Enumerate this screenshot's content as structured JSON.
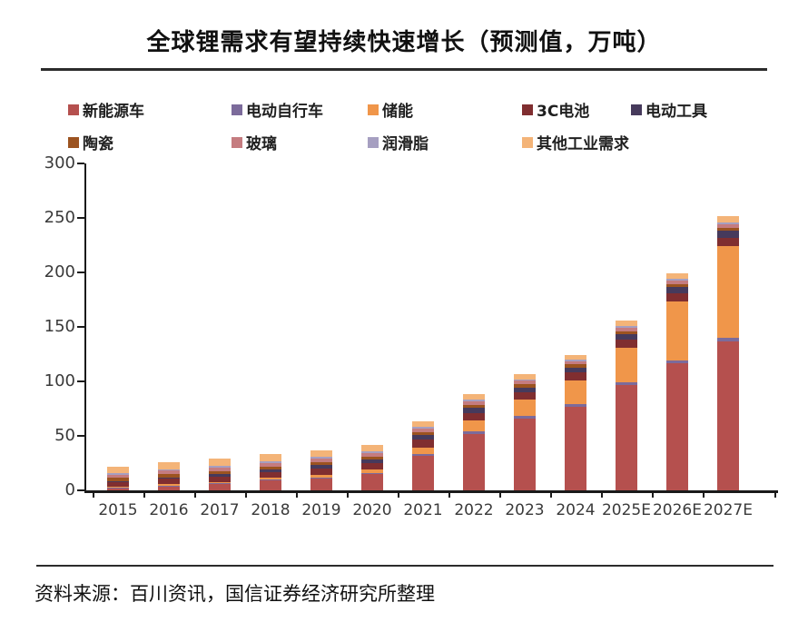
{
  "title": "全球锂需求有望持续快速增长（预测值，万吨）",
  "source_note": "资料来源：百川资讯，国信证券经济研究所整理",
  "chart_data": {
    "type": "bar",
    "stacked": true,
    "title": "全球锂需求有望持续快速增长（预测值，万吨）",
    "unit": "万吨",
    "xlabel": "",
    "ylabel": "",
    "ylim": [
      0,
      300
    ],
    "yticks": [
      0,
      50,
      100,
      150,
      200,
      250,
      300
    ],
    "grid": false,
    "legend_position": "top",
    "categories": [
      "2015",
      "2016",
      "2017",
      "2018",
      "2019",
      "2020",
      "2021",
      "2022",
      "2023",
      "2024",
      "2025E",
      "2026E",
      "2027E"
    ],
    "series": [
      {
        "name": "新能源车",
        "color": "#B5504E",
        "values": [
          2.5,
          4,
          6,
          9,
          11,
          15,
          32,
          52,
          66,
          77,
          97,
          117,
          137
        ]
      },
      {
        "name": "电动自行车",
        "color": "#7C6B9B",
        "values": [
          0.4,
          0.5,
          0.8,
          1,
          1,
          1.2,
          1.5,
          2,
          2,
          2,
          2,
          2.5,
          3
        ]
      },
      {
        "name": "储能",
        "color": "#F0964A",
        "values": [
          0.5,
          1,
          1,
          1.5,
          2,
          3,
          6,
          10,
          15,
          22,
          32,
          54,
          84
        ]
      },
      {
        "name": "3C电池",
        "color": "#802E30",
        "values": [
          4,
          5,
          5,
          5,
          6,
          6,
          7,
          7,
          7,
          7,
          7,
          7.5,
          8
        ]
      },
      {
        "name": "电动工具",
        "color": "#463A5C",
        "values": [
          1,
          1.5,
          2,
          2.5,
          3,
          3,
          4,
          4.5,
          4.5,
          4.5,
          5,
          5.5,
          6
        ]
      },
      {
        "name": "陶瓷",
        "color": "#9C5320",
        "values": [
          3,
          3,
          3,
          3,
          3,
          3,
          3,
          3,
          3,
          3,
          3,
          3,
          3
        ]
      },
      {
        "name": "玻璃",
        "color": "#C57C80",
        "values": [
          3,
          3,
          3,
          3,
          3,
          3,
          3,
          3,
          3,
          3,
          3,
          3,
          3
        ]
      },
      {
        "name": "润滑脂",
        "color": "#A69FC1",
        "values": [
          1.5,
          1.5,
          1.5,
          1.5,
          1.5,
          1.5,
          1.5,
          1.5,
          1.5,
          1.5,
          1.5,
          1.5,
          1.5
        ]
      },
      {
        "name": "其他工业需求",
        "color": "#F4B478",
        "values": [
          6,
          6,
          6.5,
          6.5,
          6.5,
          5.8,
          5,
          5,
          4.5,
          4.5,
          5,
          5,
          6
        ]
      }
    ]
  }
}
